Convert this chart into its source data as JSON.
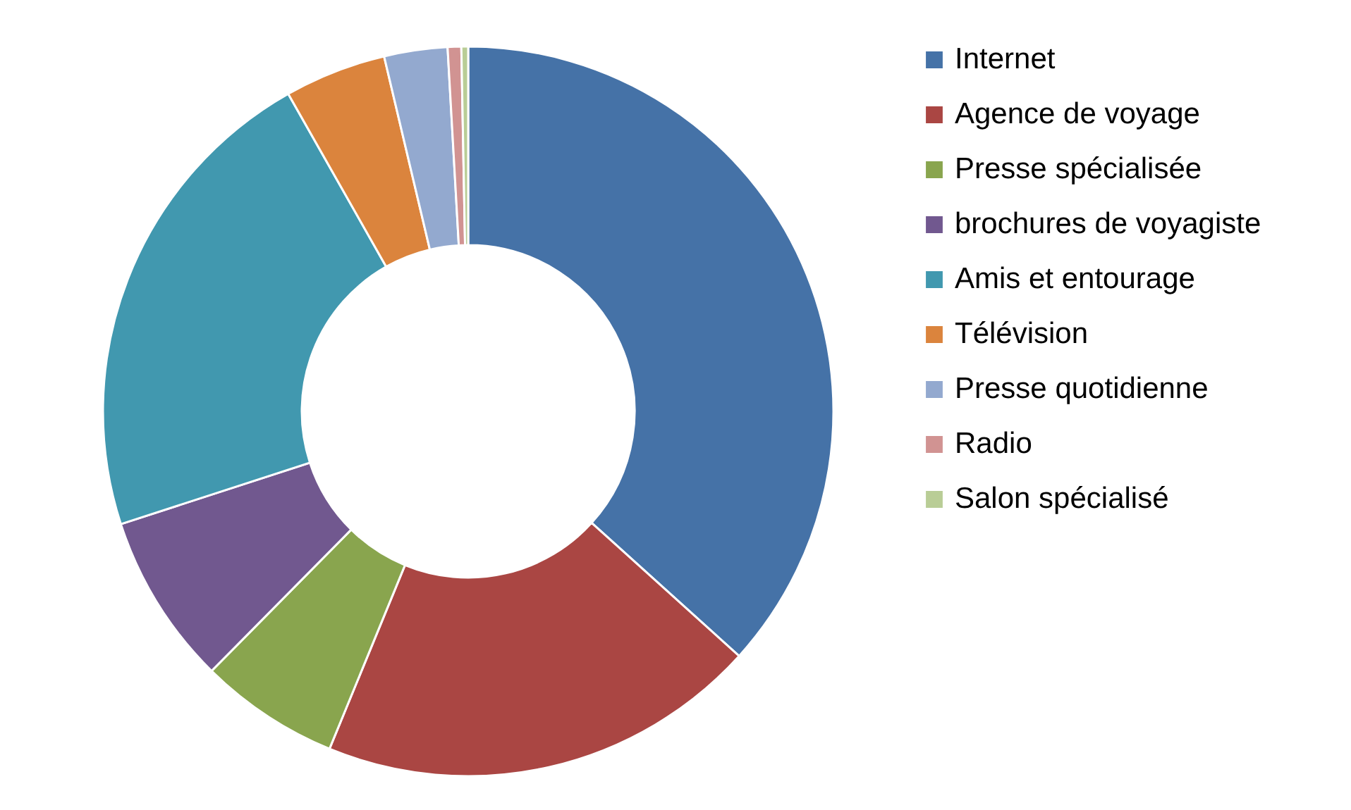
{
  "chart_data": {
    "type": "donut",
    "categories": [
      "Internet",
      "Agence de voyage",
      "Presse spécialisée",
      "brochures de voyagiste",
      "Amis et entourage",
      "Télévision",
      "Presse quotidienne",
      "Radio",
      "Salon spécialisé"
    ],
    "values": [
      36.7,
      19.5,
      6.2,
      7.6,
      21.8,
      4.5,
      2.8,
      0.6,
      0.3
    ],
    "colors": [
      "#4572a7",
      "#aa4643",
      "#89a54e",
      "#71588f",
      "#4198af",
      "#db843d",
      "#93a9cf",
      "#d19392",
      "#b9cd96"
    ],
    "legend": "right"
  }
}
